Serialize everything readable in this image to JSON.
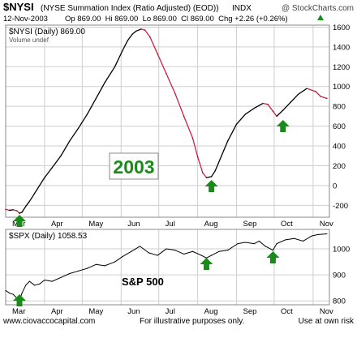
{
  "header": {
    "symbol": "$NYSI",
    "description": "(NYSE Summation Index (Ratio Adjusted) (EOD))",
    "exchange": "INDX",
    "copyright": "@ StockCharts.com",
    "date": "12-Nov-2003",
    "quote": "Op 869.00  Hi 869.00  Lo 869.00  Cl 869.00  Chg +2.26 (+0.26%)",
    "quote_trend_icon": "up-triangle-icon"
  },
  "footer": {
    "website": "www.ciovaccocapital.com",
    "disclaimer": "For illustrative purposes only.",
    "risk": "Use at own risk"
  },
  "colors": {
    "rising": "#000000",
    "falling": "#cc2244",
    "arrow": "#1a8a1a",
    "grid": "#cfcfcf",
    "year_label": "#1a8a1a"
  },
  "chart_data": [
    {
      "type": "line",
      "panel": "top",
      "legend": "$NYSI (Daily) 869.00",
      "legend_sub": "Volume undef",
      "annotation": "2003",
      "x_ticks": [
        "Mar",
        "Apr",
        "May",
        "Jun",
        "Jul",
        "Aug",
        "Sep",
        "Oct",
        "Nov"
      ],
      "x_domain": [
        "2003-03-01",
        "2003-11-14"
      ],
      "ylim": [
        -320,
        1620
      ],
      "y_ticks": [
        -200,
        0,
        200,
        400,
        600,
        800,
        1000,
        1200,
        1400,
        1600
      ],
      "grid": true,
      "color_rule": "black when rising, red when falling",
      "series": [
        {
          "x": [
            "2003-03-01",
            "2003-03-04",
            "2003-03-07",
            "2003-03-10",
            "2003-03-12",
            "2003-03-14",
            "2003-03-17",
            "2003-03-20",
            "2003-03-24",
            "2003-03-28",
            "2003-04-01",
            "2003-04-07",
            "2003-04-14",
            "2003-04-21",
            "2003-04-28",
            "2003-05-05",
            "2003-05-12",
            "2003-05-19",
            "2003-05-27",
            "2003-06-02",
            "2003-06-06",
            "2003-06-10",
            "2003-06-13",
            "2003-06-17",
            "2003-06-20",
            "2003-06-24",
            "2003-06-30",
            "2003-07-07",
            "2003-07-14",
            "2003-07-21",
            "2003-07-28",
            "2003-08-01",
            "2003-08-05",
            "2003-08-08",
            "2003-08-12",
            "2003-08-15",
            "2003-08-20",
            "2003-08-25",
            "2003-09-01",
            "2003-09-08",
            "2003-09-15",
            "2003-09-22",
            "2003-09-26",
            "2003-09-30",
            "2003-10-03",
            "2003-10-08",
            "2003-10-14",
            "2003-10-20",
            "2003-10-27",
            "2003-11-03",
            "2003-11-07",
            "2003-11-12"
          ],
          "values": [
            -240,
            -250,
            -245,
            -255,
            -280,
            -270,
            -210,
            -160,
            -80,
            0,
            80,
            180,
            300,
            450,
            580,
            720,
            880,
            1040,
            1200,
            1360,
            1460,
            1530,
            1560,
            1580,
            1570,
            1500,
            1330,
            1130,
            930,
            700,
            480,
            290,
            130,
            80,
            90,
            150,
            300,
            450,
            620,
            720,
            780,
            830,
            820,
            750,
            700,
            760,
            840,
            920,
            980,
            950,
            900,
            880
          ]
        }
      ]
    },
    {
      "type": "line",
      "panel": "bottom",
      "legend": "$SPX (Daily) 1058.53",
      "annotation": "S&P 500",
      "x_ticks": [
        "Mar",
        "Apr",
        "May",
        "Jun",
        "Jul",
        "Aug",
        "Sep",
        "Oct",
        "Nov"
      ],
      "x_domain": [
        "2003-03-01",
        "2003-11-14"
      ],
      "ylim": [
        785,
        1075
      ],
      "y_ticks": [
        800,
        900,
        1000
      ],
      "grid": true,
      "series": [
        {
          "x": [
            "2003-03-01",
            "2003-03-04",
            "2003-03-07",
            "2003-03-10",
            "2003-03-12",
            "2003-03-14",
            "2003-03-17",
            "2003-03-20",
            "2003-03-24",
            "2003-03-28",
            "2003-04-01",
            "2003-04-07",
            "2003-04-14",
            "2003-04-21",
            "2003-04-28",
            "2003-05-05",
            "2003-05-12",
            "2003-05-19",
            "2003-05-27",
            "2003-06-02",
            "2003-06-09",
            "2003-06-16",
            "2003-06-23",
            "2003-06-30",
            "2003-07-07",
            "2003-07-14",
            "2003-07-21",
            "2003-07-28",
            "2003-08-04",
            "2003-08-08",
            "2003-08-12",
            "2003-08-18",
            "2003-08-25",
            "2003-09-02",
            "2003-09-08",
            "2003-09-15",
            "2003-09-19",
            "2003-09-24",
            "2003-09-30",
            "2003-10-03",
            "2003-10-10",
            "2003-10-17",
            "2003-10-24",
            "2003-10-31",
            "2003-11-05",
            "2003-11-12"
          ],
          "values": [
            840,
            830,
            825,
            810,
            800,
            830,
            860,
            875,
            860,
            865,
            880,
            875,
            890,
            905,
            915,
            925,
            940,
            935,
            950,
            970,
            990,
            1010,
            985,
            975,
            1000,
            995,
            980,
            990,
            975,
            965,
            975,
            990,
            995,
            1020,
            1025,
            1020,
            1030,
            1010,
            995,
            1020,
            1035,
            1040,
            1030,
            1050,
            1055,
            1058
          ]
        }
      ]
    }
  ]
}
